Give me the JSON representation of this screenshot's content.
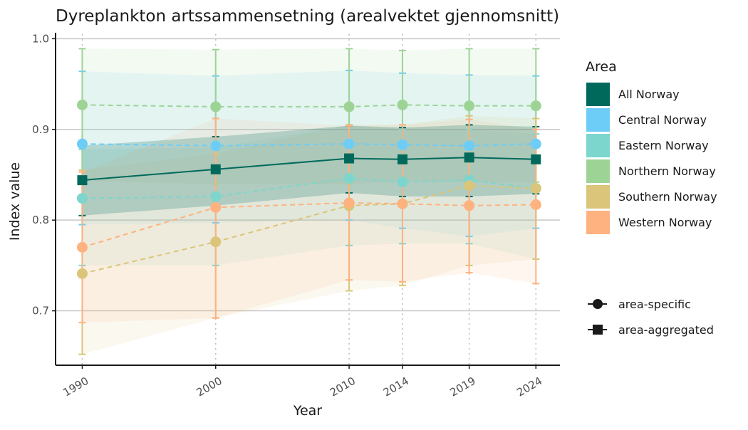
{
  "chart_data": {
    "type": "line",
    "title": "Dyreplankton artssammensetning (arealvektet gjennomsnitt)",
    "xlabel": "Year",
    "ylabel": "Index value",
    "x": [
      1990,
      2000,
      2010,
      2014,
      2019,
      2024
    ],
    "x_tick_labels": [
      "1990",
      "2000",
      "2010",
      "2014",
      "2019",
      "2024"
    ],
    "xlim": [
      1988,
      2025.8
    ],
    "ylim": [
      0.64,
      1.005
    ],
    "y_ticks": [
      0.7,
      0.8,
      0.9,
      1.0
    ],
    "y_tick_labels": [
      "0.7",
      "0.8",
      "0.9",
      "1.0"
    ],
    "grid": "horizontal major lines; dotted vertical lines at data years",
    "legend_position": "right",
    "legend_title": "Area",
    "series": [
      {
        "name": "All Norway",
        "color": "#00695c",
        "marker": "square",
        "line": "solid",
        "values": [
          0.844,
          0.856,
          0.868,
          0.867,
          0.869,
          0.867
        ],
        "lower": [
          0.805,
          0.816,
          0.83,
          0.826,
          0.826,
          0.829
        ],
        "upper": [
          0.882,
          0.892,
          0.904,
          0.902,
          0.905,
          0.903
        ]
      },
      {
        "name": "Central Norway",
        "color": "#6ecdf7",
        "marker": "circle",
        "line": "dashed",
        "values": [
          0.884,
          0.882,
          0.884,
          0.883,
          0.882,
          0.884
        ],
        "lower": [
          0.795,
          0.797,
          0.8,
          0.791,
          0.782,
          0.791
        ],
        "upper": [
          0.964,
          0.959,
          0.965,
          0.962,
          0.96,
          0.959
        ]
      },
      {
        "name": "Eastern Norway",
        "color": "#7dd6cd",
        "marker": "circle",
        "line": "dashed",
        "values": [
          0.824,
          0.826,
          0.846,
          0.842,
          0.844,
          0.835
        ],
        "lower": [
          0.75,
          0.75,
          0.772,
          0.774,
          0.774,
          0.757
        ],
        "upper": [
          0.878,
          0.88,
          0.905,
          0.9,
          0.9,
          0.895
        ]
      },
      {
        "name": "Northern Norway",
        "color": "#9dd496",
        "marker": "circle",
        "line": "dashed",
        "values": [
          0.927,
          0.925,
          0.925,
          0.927,
          0.926,
          0.926
        ],
        "lower": [
          0.843,
          0.84,
          0.84,
          0.843,
          0.842,
          0.842
        ],
        "upper": [
          0.989,
          0.988,
          0.989,
          0.987,
          0.989,
          0.989
        ]
      },
      {
        "name": "Southern Norway",
        "color": "#dac57a",
        "marker": "circle",
        "line": "dashed",
        "values": [
          0.741,
          0.776,
          0.816,
          0.818,
          0.838,
          0.835
        ],
        "lower": [
          0.652,
          0.692,
          0.722,
          0.728,
          0.75,
          0.757
        ],
        "upper": [
          0.855,
          0.873,
          0.905,
          0.905,
          0.915,
          0.912
        ]
      },
      {
        "name": "Western Norway",
        "color": "#fdb280",
        "marker": "circle",
        "line": "dashed",
        "values": [
          0.77,
          0.814,
          0.819,
          0.818,
          0.816,
          0.817
        ],
        "lower": [
          0.687,
          0.692,
          0.734,
          0.732,
          0.742,
          0.73
        ],
        "upper": [
          0.853,
          0.912,
          0.904,
          0.905,
          0.911,
          0.9
        ]
      }
    ],
    "shape_legend": [
      {
        "label": "area-specific",
        "marker": "circle"
      },
      {
        "label": "area-aggregated",
        "marker": "square"
      }
    ]
  }
}
